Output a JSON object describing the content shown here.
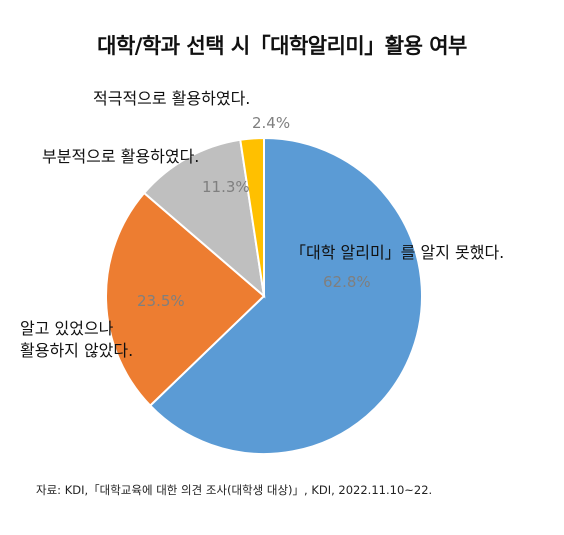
{
  "title": "대학/학과 선택 시「대학알리미」활용 여부",
  "source": "자료: KDI,「대학교육에 대한 의견 조사(대학생 대상)」, KDI, 2022.11.10~22.",
  "chart_data": {
    "type": "pie",
    "slices": [
      {
        "label": "「대학 알리미」를 알지 못했다.",
        "value": 62.8,
        "value_label": "62.8%",
        "color": "#5b9bd5"
      },
      {
        "label": "알고 있었으나\n활용하지 않았다.",
        "value": 23.5,
        "value_label": "23.5%",
        "color": "#ed7d31"
      },
      {
        "label": "부분적으로 활용하였다.",
        "value": 11.3,
        "value_label": "11.3%",
        "color": "#bfbfbf"
      },
      {
        "label": "적극적으로 활용하였다.",
        "value": 2.4,
        "value_label": "2.4%",
        "color": "#ffc000"
      }
    ],
    "start": "12 o'clock",
    "direction": "clockwise"
  }
}
